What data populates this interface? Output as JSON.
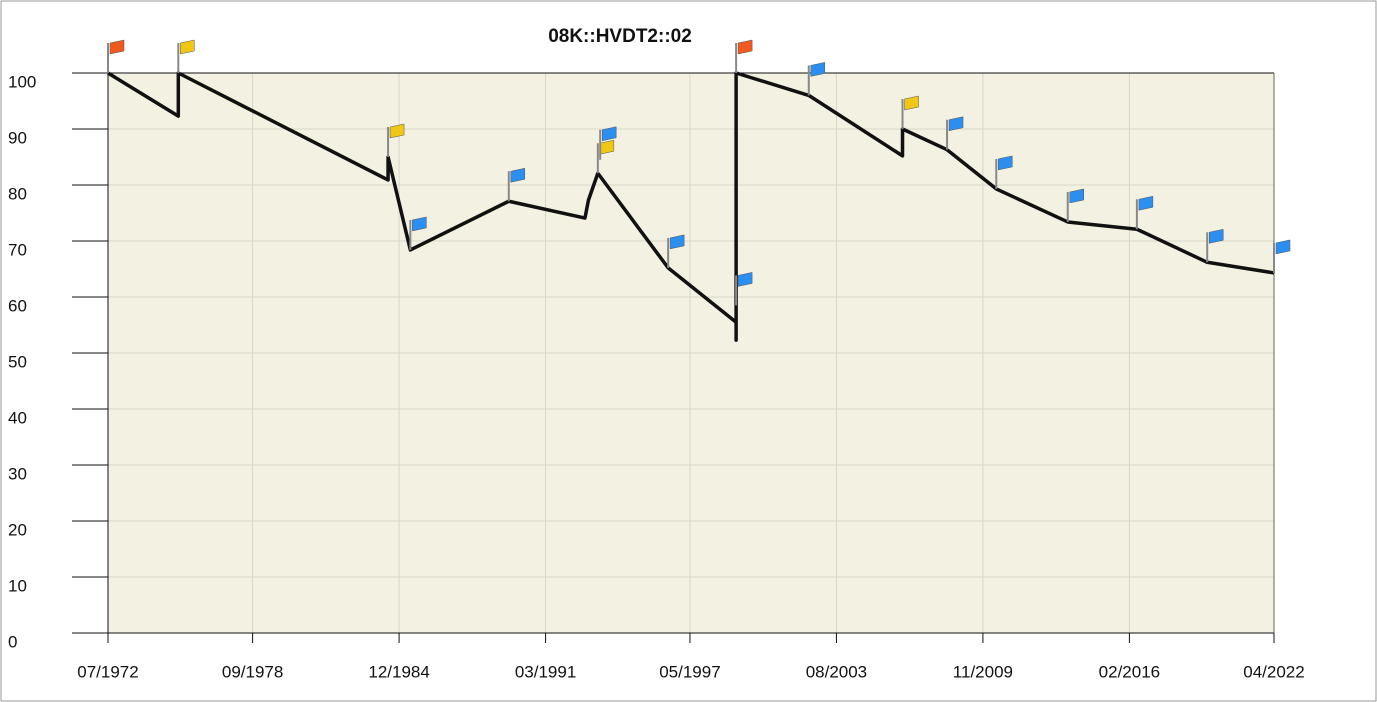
{
  "chart_data": {
    "type": "line",
    "title": "08K::HVDT2::02",
    "x": [
      1972.5,
      1975.5,
      1975.5,
      1984.45,
      1984.45,
      1985.4,
      1989.6,
      1992.85,
      1993.0,
      1993.4,
      1996.4,
      1999.3,
      1999.3,
      1999.3,
      2002.4,
      2006.4,
      2006.4,
      2008.3,
      2010.4,
      2013.45,
      2016.4,
      2019.4,
      2022.25
    ],
    "series": [
      {
        "color": "#111111",
        "values": [
          100,
          92.3,
          100,
          80.9,
          85,
          68.4,
          77.1,
          74.1,
          77.3,
          82.1,
          65.2,
          55.5,
          52.3,
          100,
          96,
          85.2,
          90,
          86.3,
          79.3,
          73.4,
          72.1,
          66.2,
          64.3
        ]
      }
    ],
    "flags": [
      {
        "x": 1972.5,
        "y": 100,
        "color": "#f05a1e"
      },
      {
        "x": 1975.5,
        "y": 100,
        "color": "#f0c814"
      },
      {
        "x": 1984.45,
        "y": 85,
        "color": "#f0c814"
      },
      {
        "x": 1985.4,
        "y": 68.4,
        "color": "#2a8ff0"
      },
      {
        "x": 1989.6,
        "y": 77.1,
        "color": "#2a8ff0"
      },
      {
        "x": 1993.4,
        "y": 82.1,
        "color": "#f0c814"
      },
      {
        "x": 1993.5,
        "y": 84.5,
        "color": "#2a8ff0"
      },
      {
        "x": 1996.4,
        "y": 65.2,
        "color": "#2a8ff0"
      },
      {
        "x": 1999.3,
        "y": 58.5,
        "color": "#2a8ff0"
      },
      {
        "x": 1999.3,
        "y": 100,
        "color": "#f05a1e"
      },
      {
        "x": 2002.4,
        "y": 96,
        "color": "#2a8ff0"
      },
      {
        "x": 2006.4,
        "y": 90,
        "color": "#f0c814"
      },
      {
        "x": 2008.3,
        "y": 86.3,
        "color": "#2a8ff0"
      },
      {
        "x": 2010.4,
        "y": 79.3,
        "color": "#2a8ff0"
      },
      {
        "x": 2013.45,
        "y": 73.4,
        "color": "#2a8ff0"
      },
      {
        "x": 2016.4,
        "y": 72.1,
        "color": "#2a8ff0"
      },
      {
        "x": 2019.4,
        "y": 66.2,
        "color": "#2a8ff0"
      },
      {
        "x": 2022.25,
        "y": 64.3,
        "color": "#2a8ff0"
      }
    ],
    "xlim": [
      1972.5,
      2022.25
    ],
    "xticks": [
      {
        "value": 1972.5,
        "label": "07/1972"
      },
      {
        "value": 1978.67,
        "label": "09/1978"
      },
      {
        "value": 1984.92,
        "label": "12/1984"
      },
      {
        "value": 1991.17,
        "label": "03/1991"
      },
      {
        "value": 1997.33,
        "label": "05/1997"
      },
      {
        "value": 2003.58,
        "label": "08/2003"
      },
      {
        "value": 2009.83,
        "label": "11/2009"
      },
      {
        "value": 2016.08,
        "label": "02/2016"
      },
      {
        "value": 2022.25,
        "label": "04/2022"
      }
    ],
    "ylim": [
      0,
      100
    ],
    "yticks": [
      0,
      10,
      20,
      30,
      40,
      50,
      60,
      70,
      80,
      90,
      100
    ],
    "grid": true
  }
}
